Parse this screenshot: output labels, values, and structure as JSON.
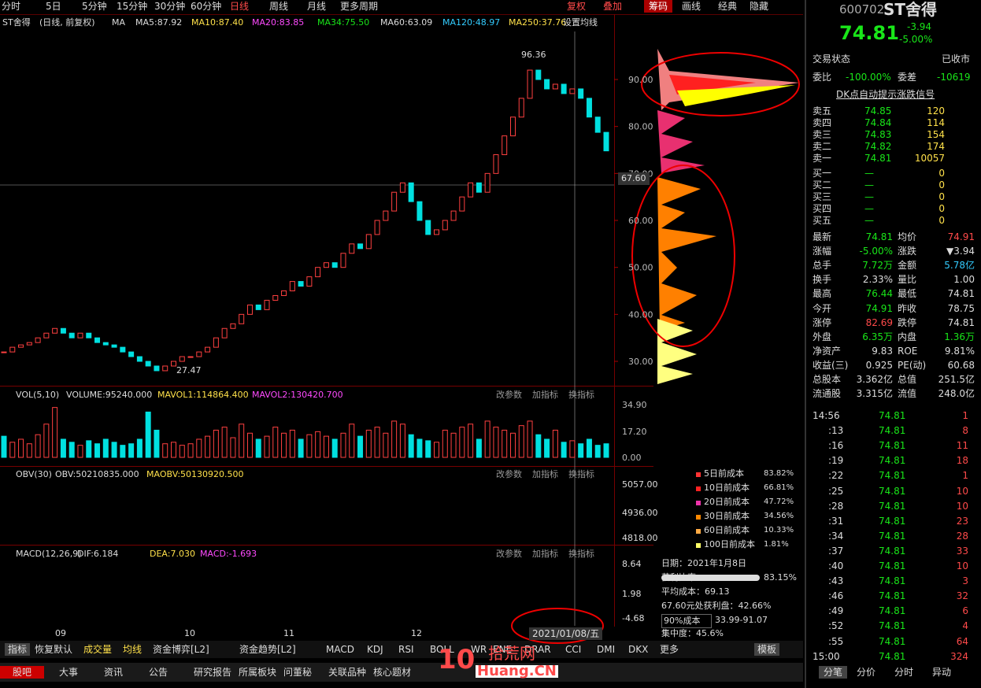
{
  "toolbar": {
    "periods": [
      "分时",
      "5日",
      "5分钟",
      "15分钟",
      "30分钟",
      "60分钟",
      "日线",
      "周线",
      "月线",
      "更多周期"
    ],
    "tools": [
      "复权",
      "叠加",
      "筹码",
      "画线",
      "经典",
      "隐藏"
    ]
  },
  "main_chart": {
    "legend": [
      "ST舍得",
      "(日线, 前复权)",
      "MA",
      "MA5:87.92",
      "MA10:87.40",
      "MA20:83.85",
      "MA34:75.50",
      "MA60:63.09",
      "MA120:48.97",
      "MA250:37.76",
      "设置均线"
    ],
    "price_ticks": [
      {
        "value": 90,
        "label": "90.00"
      },
      {
        "value": 80,
        "label": "80.00"
      },
      {
        "value": 70,
        "label": "70.00"
      },
      {
        "value": 60,
        "label": "60.00"
      },
      {
        "value": 50,
        "label": "50.00"
      },
      {
        "value": 40,
        "label": "40.00"
      },
      {
        "value": 30,
        "label": "30.00"
      }
    ],
    "annotations": {
      "high": "96.36",
      "low": "27.47",
      "crosshair": "67.60"
    },
    "closes": [
      32,
      33,
      33.5,
      34,
      35,
      36,
      37,
      36,
      35,
      36,
      35,
      34,
      33.5,
      33,
      32,
      31,
      30,
      29,
      28,
      29,
      30,
      31,
      31,
      32,
      33,
      35,
      37,
      38,
      40,
      42,
      41,
      43,
      44,
      45,
      47,
      46,
      48,
      50,
      51,
      50,
      53,
      55,
      54,
      57,
      60,
      62,
      66,
      68,
      64,
      60,
      57,
      58,
      60,
      62,
      65,
      68,
      66,
      70,
      74,
      78,
      82,
      86,
      92,
      90,
      88,
      89,
      87,
      88,
      86,
      82,
      78.75,
      74.81
    ]
  },
  "volume_panel": {
    "title": "VOL(5,10)",
    "items": [
      "VOLUME:95240.000",
      "MAVOL1:114864.400",
      "MAVOL2:130420.700"
    ],
    "ticks": [
      {
        "value": 34.9,
        "label": "34.90"
      },
      {
        "value": 17.2,
        "label": "17.20"
      },
      {
        "value": 0,
        "label": "0.00"
      }
    ],
    "values": [
      14,
      10,
      12,
      9,
      15,
      22,
      33,
      12,
      10,
      8,
      11,
      9,
      12,
      10,
      8,
      9,
      12,
      30,
      18,
      9,
      10,
      8,
      9,
      12,
      14,
      18,
      20,
      13,
      22,
      16,
      12,
      14,
      20,
      16,
      18,
      12,
      15,
      17,
      14,
      12,
      16,
      22,
      14,
      18,
      20,
      16,
      24,
      22,
      15,
      12,
      11,
      10,
      18,
      16,
      20,
      22,
      12,
      24,
      20,
      18,
      16,
      21,
      24,
      15,
      12,
      18,
      10,
      11,
      9,
      12,
      8,
      9
    ]
  },
  "obv_panel": {
    "title": "OBV(30)",
    "items": [
      "OBV:50210835.000",
      "MAOBV:50130920.500"
    ],
    "ticks": [
      "5057.00",
      "4936.00",
      "4818.00"
    ]
  },
  "macd_panel": {
    "title": "MACD(12,26,9)",
    "items": [
      "DIF:6.184",
      "DEA:7.030",
      "MACD:-1.693"
    ],
    "ticks": [
      "8.64",
      "1.98",
      "-4.68"
    ]
  },
  "panel_buttons": [
    "改参数",
    "加指标",
    "换指标"
  ],
  "months": [
    "09",
    "10",
    "11",
    "12"
  ],
  "date_box": "2021/01/08/五",
  "chips": {
    "legend": [
      [
        "5日前成本",
        "83.82%"
      ],
      [
        "10日前成本",
        "66.81%"
      ],
      [
        "20日前成本",
        "47.72%"
      ],
      [
        "30日前成本",
        "34.56%"
      ],
      [
        "60日前成本",
        "10.33%"
      ],
      [
        "100日前成本",
        "1.81%"
      ]
    ],
    "date": "日期：2021年1月8日",
    "profit_label": "获利比率：",
    "profit": "83.15%",
    "avg_cost": "平均成本：69.13",
    "profit_at": "67.60元处获利盘：42.66%",
    "cost_select": "90%成本",
    "cost_range": "33.99-91.07",
    "concentration": "集中度：45.6%"
  },
  "bottom_tabs": [
    "指标",
    "恢复默认",
    "成交量",
    "均线",
    "资金博弈[L2]",
    "资金趋势[L2]",
    "MACD",
    "KDJ",
    "RSI",
    "BOLL",
    "WR",
    "ENE",
    "DRAR",
    "CCI",
    "DMI",
    "DKX",
    "更多",
    "模板"
  ],
  "info_tabs": [
    "股吧",
    "大事",
    "资讯",
    "公告",
    "研究报告",
    "所属板块",
    "问董秘",
    "关联品种",
    "核心题材"
  ],
  "watermark": {
    "logo": "10",
    "site": "拾荒网",
    "url": "Huang.CN"
  },
  "quote": {
    "code": "600702",
    "name": "ST舍得",
    "price": "74.81",
    "change": "-3.94",
    "pct": "-5.00%",
    "status_label": "交易状态",
    "status": "已收市",
    "wb_label": "委比",
    "wb": "-100.00%",
    "wc_label": "委差",
    "wc": "-10619",
    "signal": "DK点自动提示涨跌信号",
    "sells": [
      [
        "卖五",
        "74.85",
        "120"
      ],
      [
        "卖四",
        "74.84",
        "114"
      ],
      [
        "卖三",
        "74.83",
        "154"
      ],
      [
        "卖二",
        "74.82",
        "174"
      ],
      [
        "卖一",
        "74.81",
        "10057"
      ]
    ],
    "buys": [
      [
        "买一",
        "—",
        "0"
      ],
      [
        "买二",
        "—",
        "0"
      ],
      [
        "买三",
        "—",
        "0"
      ],
      [
        "买四",
        "—",
        "0"
      ],
      [
        "买五",
        "—",
        "0"
      ]
    ],
    "stats": [
      [
        "最新",
        "74.81",
        "均价",
        "74.91"
      ],
      [
        "涨幅",
        "-5.00%",
        "涨跌",
        "▼3.94"
      ],
      [
        "总手",
        "7.72万",
        "金额",
        "5.78亿"
      ],
      [
        "换手",
        "2.33%",
        "量比",
        "1.00"
      ],
      [
        "最高",
        "76.44",
        "最低",
        "74.81"
      ],
      [
        "今开",
        "74.91",
        "昨收",
        "78.75"
      ],
      [
        "涨停",
        "82.69",
        "跌停",
        "74.81"
      ],
      [
        "外盘",
        "6.35万",
        "内盘",
        "1.36万"
      ],
      [
        "净资产",
        "9.83",
        "ROE",
        "9.81%"
      ],
      [
        "收益(三)",
        "0.925",
        "PE(动)",
        "60.68"
      ],
      [
        "总股本",
        "3.362亿",
        "总值",
        "251.5亿"
      ],
      [
        "流通股",
        "3.315亿",
        "流值",
        "248.0亿"
      ]
    ],
    "ticks": [
      [
        "14:56",
        "74.81",
        1
      ],
      [
        ":13",
        "74.81",
        8
      ],
      [
        ":16",
        "74.81",
        11
      ],
      [
        ":19",
        "74.81",
        18
      ],
      [
        ":22",
        "74.81",
        1
      ],
      [
        ":25",
        "74.81",
        10
      ],
      [
        ":28",
        "74.81",
        10
      ],
      [
        ":31",
        "74.81",
        23
      ],
      [
        ":34",
        "74.81",
        28
      ],
      [
        ":37",
        "74.81",
        33
      ],
      [
        ":40",
        "74.81",
        10
      ],
      [
        ":43",
        "74.81",
        3
      ],
      [
        ":46",
        "74.81",
        32
      ],
      [
        ":49",
        "74.81",
        6
      ],
      [
        ":52",
        "74.81",
        4
      ],
      [
        ":55",
        "74.81",
        64
      ],
      [
        "15:00",
        "74.81",
        324
      ]
    ],
    "tabs": [
      "分笔",
      "分价",
      "分时",
      "异动"
    ]
  }
}
